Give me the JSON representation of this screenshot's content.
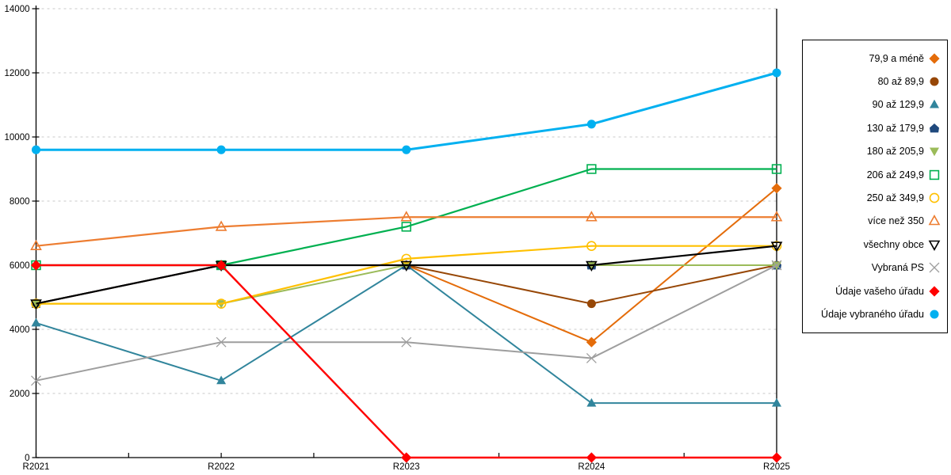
{
  "chart_data": {
    "type": "line",
    "title": "",
    "xlabel": "",
    "ylabel": "",
    "categories": [
      "R2021",
      "R2022",
      "R2023",
      "R2024",
      "R2025"
    ],
    "ylim": [
      0,
      14000
    ],
    "ytick_step": 2000,
    "yticklabels": [
      "0",
      "2000",
      "4000",
      "6000",
      "8000",
      "10000",
      "12000",
      "14000"
    ],
    "grid": "horizontal-dashed",
    "legend_position": "right-outside",
    "axis_color": "#000000",
    "grid_color": "#c9c9c9",
    "series": [
      {
        "name": "79,9 a méně",
        "color": "#e46c0a",
        "marker": "diamond",
        "marker_fill": "solid",
        "line_width": 2,
        "values": [
          4800,
          6000,
          6000,
          3600,
          8400
        ]
      },
      {
        "name": "80 až 89,9",
        "color": "#974706",
        "marker": "circle",
        "marker_fill": "solid",
        "line_width": 2,
        "values": [
          4800,
          6000,
          6000,
          4800,
          6000
        ]
      },
      {
        "name": "90 až 129,9",
        "color": "#31859c",
        "marker": "triangle-up",
        "marker_fill": "solid",
        "line_width": 2,
        "values": [
          4200,
          2400,
          6000,
          1700,
          1700
        ]
      },
      {
        "name": "130 až 179,9",
        "color": "#1f497d",
        "marker": "pentagon",
        "marker_fill": "solid",
        "line_width": 2,
        "values": [
          4800,
          6000,
          6000,
          6000,
          6000
        ]
      },
      {
        "name": "180 až 205,9",
        "color": "#9bbb59",
        "marker": "triangle-down",
        "marker_fill": "solid",
        "line_width": 2,
        "values": [
          4800,
          4800,
          6000,
          6000,
          6000
        ]
      },
      {
        "name": "206 až 249,9",
        "color": "#00b050",
        "marker": "square",
        "marker_fill": "open",
        "line_width": 2.2,
        "values": [
          6000,
          6000,
          7200,
          9000,
          9000
        ]
      },
      {
        "name": "250 až 349,9",
        "color": "#ffc000",
        "marker": "circle",
        "marker_fill": "open",
        "line_width": 2.2,
        "values": [
          4800,
          4800,
          6200,
          6600,
          6600
        ]
      },
      {
        "name": "více než 350",
        "color": "#ed7d31",
        "marker": "triangle-up",
        "marker_fill": "open",
        "line_width": 2.2,
        "values": [
          6600,
          7200,
          7500,
          7500,
          7500
        ]
      },
      {
        "name": "všechny obce",
        "color": "#000000",
        "marker": "triangle-down",
        "marker_fill": "open",
        "line_width": 2.2,
        "values": [
          4800,
          6000,
          6000,
          6000,
          6600
        ]
      },
      {
        "name": "Vybraná PS",
        "color": "#9e9e9e",
        "marker": "x",
        "marker_fill": "open",
        "line_width": 2,
        "values": [
          2400,
          3600,
          3600,
          3100,
          6000
        ]
      },
      {
        "name": "Údaje vašeho úřadu",
        "color": "#ff0000",
        "marker": "diamond",
        "marker_fill": "solid",
        "line_width": 2.4,
        "values": [
          6000,
          6000,
          0,
          0,
          0
        ]
      },
      {
        "name": "Údaje vybraného úřadu",
        "color": "#00b0f0",
        "marker": "circle",
        "marker_fill": "solid",
        "line_width": 3,
        "values": [
          9600,
          9600,
          9600,
          10400,
          12000
        ]
      }
    ]
  }
}
